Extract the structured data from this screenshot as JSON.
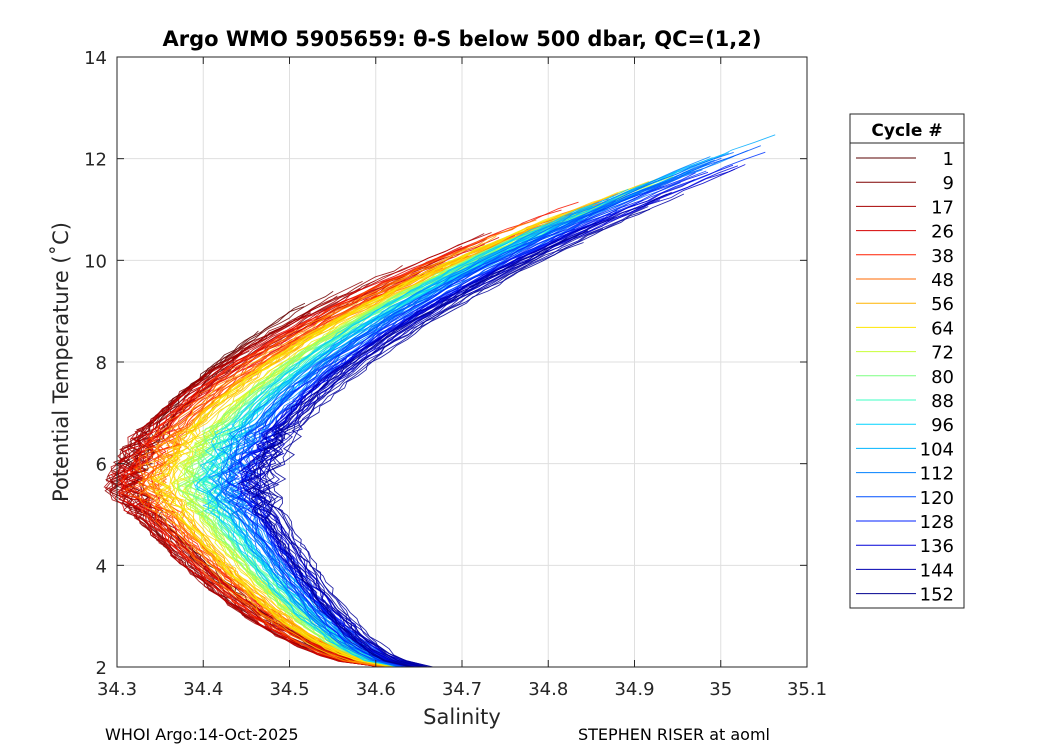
{
  "chart_data": {
    "type": "line",
    "title": "Argo WMO 5905659: θ-S below 500 dbar,  QC=(1,2)",
    "xlabel": "Salinity",
    "ylabel": "Potential Temperature (˚C)",
    "xlim": [
      34.3,
      35.1
    ],
    "ylim": [
      2,
      14
    ],
    "xticks": [
      "34.3",
      "34.4",
      "34.5",
      "34.6",
      "34.7",
      "34.8",
      "34.9",
      "35",
      "35.1"
    ],
    "yticks": [
      "2",
      "4",
      "6",
      "8",
      "10",
      "12",
      "14"
    ],
    "grid": true,
    "legend": {
      "title": "Cycle #",
      "placement": "outside-right",
      "entries": [
        "1",
        "9",
        "17",
        "26",
        "38",
        "48",
        "56",
        "64",
        "72",
        "80",
        "88",
        "96",
        "104",
        "112",
        "120",
        "128",
        "136",
        "144",
        "152"
      ],
      "colors": [
        "#5a0000",
        "#7f0000",
        "#a60000",
        "#d40000",
        "#ff1e00",
        "#ff6a00",
        "#ffb300",
        "#ffe600",
        "#c8ff37",
        "#7dff82",
        "#3cffc3",
        "#00d4ff",
        "#00b4ff",
        "#0080ff",
        "#0050ff",
        "#0020ff",
        "#0000d8",
        "#0000b0",
        "#00008f"
      ]
    },
    "series_envelopes": [
      {
        "cycle": "1",
        "tmin_s": 34.31,
        "tmin_t": 5.5,
        "top_s": 34.5,
        "top_t": 9.1,
        "bottom_s": 34.62,
        "bottom_t": 2.0
      },
      {
        "cycle": "26",
        "tmin_s": 34.31,
        "tmin_t": 5.5,
        "top_s": 34.87,
        "top_t": 11.3,
        "bottom_s": 34.62,
        "bottom_t": 2.0
      },
      {
        "cycle": "64",
        "tmin_s": 34.36,
        "tmin_t": 5.5,
        "top_s": 34.93,
        "top_t": 11.6,
        "bottom_s": 34.63,
        "bottom_t": 2.0
      },
      {
        "cycle": "96",
        "tmin_s": 34.41,
        "tmin_t": 5.5,
        "top_s": 34.98,
        "top_t": 11.9,
        "bottom_s": 34.64,
        "bottom_t": 2.0
      },
      {
        "cycle": "104",
        "tmin_s": 34.42,
        "tmin_t": 5.5,
        "top_s": 35.08,
        "top_t": 12.6,
        "bottom_s": 34.64,
        "bottom_t": 2.0
      },
      {
        "cycle": "152",
        "tmin_s": 34.47,
        "tmin_t": 5.5,
        "top_s": 35.01,
        "top_t": 11.7,
        "bottom_s": 34.65,
        "bottom_t": 2.0
      }
    ]
  },
  "footer": {
    "left": "WHOI Argo:14-Oct-2025",
    "right": "STEPHEN RISER at aoml"
  }
}
